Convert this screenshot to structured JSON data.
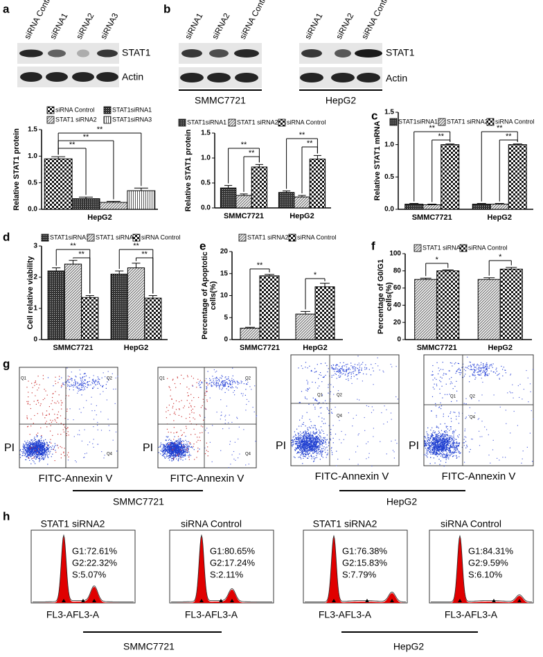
{
  "figure": {
    "panel_labels": [
      "a",
      "b",
      "c",
      "d",
      "e",
      "f",
      "g",
      "h"
    ],
    "blot_a": {
      "lanes": [
        "siRNA Control",
        "siRNA1",
        "siRNA2",
        "siRNA3"
      ],
      "bands": [
        "STAT1",
        "Actin"
      ]
    },
    "blot_b": {
      "groups": [
        {
          "name": "SMMC7721",
          "lanes": [
            "siRNA1",
            "siRNA2",
            "siRNA Control"
          ]
        },
        {
          "name": "HepG2",
          "lanes": [
            "siRNA1",
            "siRNA2",
            "siRNA Control"
          ]
        }
      ],
      "bands": [
        "STAT1",
        "Actin"
      ]
    },
    "flow": {
      "y_label": "PI",
      "x_label": "FITC-Annexin V",
      "quadrants": [
        "Q1",
        "Q2",
        "Q4"
      ],
      "groups": [
        "SMMC7721",
        "HepG2"
      ]
    },
    "cycle": {
      "x_label": "FL3-AFL3-A",
      "groups": [
        "SMMC7721",
        "HepG2"
      ],
      "plots": [
        {
          "title": "STAT1 siRNA2",
          "stats": [
            "G1:72.61%",
            "G2:22.32%",
            "S:5.07%"
          ]
        },
        {
          "title": "siRNA Control",
          "stats": [
            "G1:80.65%",
            "G2:17.24%",
            "S:2.11%"
          ]
        },
        {
          "title": "STAT1 siRNA2",
          "stats": [
            "G1:76.38%",
            "G2:15.83%",
            "S:7.79%"
          ]
        },
        {
          "title": "siRNA Control",
          "stats": [
            "G1:84.31%",
            "G2:9.59%",
            "S:6.10%"
          ]
        }
      ]
    }
  },
  "chart_data": [
    {
      "type": "bar",
      "y_label": [
        "Relative STAT1 protein"
      ],
      "categories": [
        "HepG2"
      ],
      "series": [
        {
          "name": "siRNA Control",
          "pattern": "checker",
          "values": [
            0.95
          ],
          "errors": [
            0.04
          ]
        },
        {
          "name": "STAT1siRNA1",
          "pattern": "grid",
          "values": [
            0.2
          ],
          "errors": [
            0.03
          ]
        },
        {
          "name": "STAT1 siRNA2",
          "pattern": "diagonal",
          "values": [
            0.13
          ],
          "errors": [
            0.02
          ]
        },
        {
          "name": "STAT1siRNA3",
          "pattern": "vertical",
          "values": [
            0.35
          ],
          "errors": [
            0.05
          ]
        }
      ],
      "ylim": [
        0,
        1.5
      ],
      "yticks": [
        {
          "value": 0,
          "label": "0.0"
        },
        0.5,
        {
          "value": 1,
          "label": "1.0"
        },
        1.5
      ],
      "annotations": [
        "**",
        "**",
        "**"
      ]
    },
    {
      "type": "bar",
      "y_label": [
        "Relative STAT1 protein"
      ],
      "categories": [
        "SMMC7721",
        "HepG2"
      ],
      "series": [
        {
          "name": "STAT1siRNA1",
          "pattern": "grid",
          "values": [
            0.4,
            0.31
          ],
          "errors": [
            0.05,
            0.03
          ]
        },
        {
          "name": "STAT1 siRNA2",
          "pattern": "diagonal",
          "values": [
            0.25,
            0.22
          ],
          "errors": [
            0.03,
            0.03
          ]
        },
        {
          "name": "siRNA Control",
          "pattern": "checker",
          "values": [
            0.82,
            0.98
          ],
          "errors": [
            0.05,
            0.07
          ]
        }
      ],
      "ylim": [
        0,
        1.5
      ],
      "yticks": [
        {
          "value": 0,
          "label": "0.0"
        },
        0.5,
        {
          "value": 1,
          "label": "1.0"
        },
        1.5
      ],
      "annotations": [
        "**",
        "**",
        "**",
        "**"
      ]
    },
    {
      "type": "bar",
      "y_label": [
        "Relative STAT1 mRNA"
      ],
      "categories": [
        "SMMC7721",
        "HepG2"
      ],
      "series": [
        {
          "name": "STAT1siRNA1",
          "pattern": "grid",
          "values": [
            0.08,
            0.08
          ],
          "errors": [
            0.01,
            0.01
          ]
        },
        {
          "name": "STAT1 siRNA2",
          "pattern": "diagonal",
          "values": [
            0.07,
            0.08
          ],
          "errors": [
            0.01,
            0.01
          ]
        },
        {
          "name": "siRNA Control",
          "pattern": "checker",
          "values": [
            1.0,
            1.0
          ],
          "errors": [
            0.01,
            0.01
          ]
        }
      ],
      "ylim": [
        0,
        1.5
      ],
      "yticks": [
        {
          "value": 0,
          "label": "0.0"
        },
        0.5,
        {
          "value": 1,
          "label": "1.0"
        },
        1.5
      ],
      "annotations": [
        "**",
        "**",
        "**",
        "**"
      ]
    },
    {
      "type": "bar",
      "y_label": [
        "Cell relative viability"
      ],
      "categories": [
        "SMMC7721",
        "HepG2"
      ],
      "series": [
        {
          "name": "STAT1siRNA1",
          "pattern": "grid",
          "values": [
            2.2,
            2.1
          ],
          "errors": [
            0.1,
            0.1
          ]
        },
        {
          "name": "STAT1 siRNA2",
          "pattern": "diagonal",
          "values": [
            2.42,
            2.3
          ],
          "errors": [
            0.12,
            0.15
          ]
        },
        {
          "name": "siRNA Control",
          "pattern": "checker",
          "values": [
            1.35,
            1.33
          ],
          "errors": [
            0.06,
            0.08
          ]
        }
      ],
      "ylim": [
        0,
        3
      ],
      "yticks": [
        0,
        1,
        2,
        3
      ],
      "annotations": [
        "**",
        "**",
        "**",
        "**"
      ]
    },
    {
      "type": "bar",
      "y_label": [
        "Percentage of Apoptotic",
        "cells(%)"
      ],
      "categories": [
        "SMMC7721",
        "HepG2"
      ],
      "series": [
        {
          "name": "STAT1 siRNA2",
          "pattern": "diagonal",
          "values": [
            2.6,
            5.8
          ],
          "errors": [
            0.2,
            0.6
          ]
        },
        {
          "name": "siRNA Control",
          "pattern": "checker",
          "values": [
            14.5,
            12.0
          ],
          "errors": [
            0.3,
            0.8
          ]
        }
      ],
      "ylim": [
        0,
        20
      ],
      "yticks": [
        0,
        5,
        10,
        15,
        20
      ],
      "annotations": [
        "**",
        "*"
      ]
    },
    {
      "type": "bar",
      "y_label": [
        "Percentage of G0/G1",
        "cells(%)"
      ],
      "categories": [
        "SMMC7721",
        "HepG2"
      ],
      "series": [
        {
          "name": "STAT1 siRNA2",
          "pattern": "diagonal",
          "values": [
            70,
            70
          ],
          "errors": [
            1.5,
            2
          ]
        },
        {
          "name": "siRNA Control",
          "pattern": "checker",
          "values": [
            80,
            82
          ],
          "errors": [
            1,
            2
          ]
        }
      ],
      "ylim": [
        0,
        100
      ],
      "yticks": [
        0,
        20,
        40,
        60,
        80,
        100
      ],
      "annotations": [
        "*",
        "*"
      ]
    }
  ]
}
